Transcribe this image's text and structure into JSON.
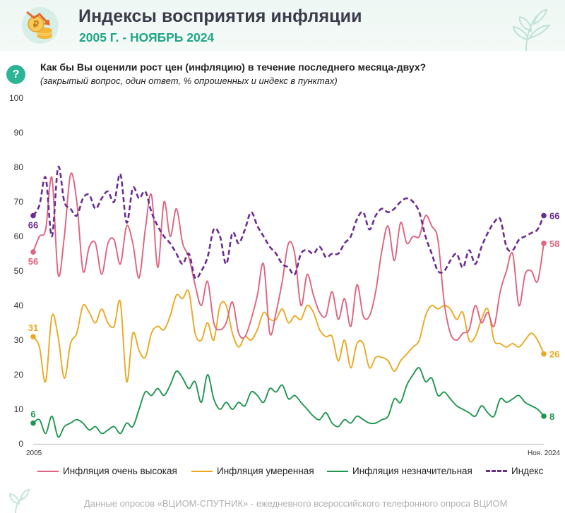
{
  "header": {
    "title": "Индексы восприятия инфляции",
    "subtitle": "2005 Г. - НОЯБРЬ 2024",
    "question_mark": "?",
    "question": "Как бы Вы оценили рост цен (инфляцию) в течение последнего месяца-двух?",
    "question_note": "(закрытый вопрос, один ответ, % опрошенных и индекс в пунктах)"
  },
  "footer": "Данные опросов «ВЦИОМ-СПУТНИК» - ежедневного всероссийского телефонного опроса ВЦИОМ",
  "colors": {
    "very_high": "#e0637f",
    "moderate": "#eba820",
    "insignificant": "#1f9650",
    "index": "#6b2c91",
    "brand": "#1fa585"
  },
  "chart_data": {
    "type": "line",
    "x_label_start": "2005",
    "x_label_end": "Ноя. 2024",
    "ylim": [
      0,
      100
    ],
    "yticks": [
      "0",
      "10",
      "20",
      "30",
      "40",
      "50",
      "60",
      "70",
      "80",
      "90",
      "100"
    ],
    "grid": "none",
    "legend_position": "bottom",
    "series": [
      {
        "key": "very_high",
        "name": "Инфляция очень высокая",
        "color": "#e0637f",
        "dashed": false,
        "start_label": "56",
        "end_label": "58",
        "values": [
          55.5,
          60,
          62,
          77,
          49,
          60,
          78,
          70,
          50,
          57,
          58,
          49,
          58,
          59,
          52,
          63,
          58,
          48,
          62,
          72,
          51,
          70,
          60,
          68,
          58,
          54,
          46,
          40,
          47,
          35,
          33,
          35,
          41,
          32,
          31,
          36,
          43,
          52,
          32,
          38,
          47,
          58,
          55,
          40,
          49,
          43,
          38,
          37,
          44,
          36,
          42,
          34,
          46,
          37,
          37,
          44,
          56,
          63,
          53,
          64,
          58,
          60,
          60,
          66,
          63,
          59,
          41,
          32,
          30,
          32,
          33,
          40,
          35,
          38,
          34,
          44,
          50,
          55,
          40,
          49,
          50,
          47,
          58
        ]
      },
      {
        "key": "moderate",
        "name": "Инфляция умеренная",
        "color": "#eba820",
        "dashed": false,
        "start_label": "31",
        "end_label": "26",
        "values": [
          31,
          28,
          18,
          37,
          31,
          19,
          29,
          32,
          40,
          38,
          35,
          39,
          35,
          34,
          41,
          18,
          32,
          27,
          25,
          32,
          34,
          33,
          37,
          43,
          42,
          44,
          32,
          30,
          35,
          30,
          40,
          40,
          32,
          28,
          31,
          30,
          33,
          38,
          36,
          36,
          39,
          35,
          37,
          36,
          40,
          38,
          33,
          31,
          31,
          24,
          30,
          22,
          29,
          29,
          22,
          25,
          25,
          24,
          21,
          24,
          26,
          28,
          30,
          37,
          40,
          39,
          40,
          39,
          36,
          38,
          30,
          31,
          36,
          39,
          30,
          29,
          28,
          29,
          28,
          30,
          32,
          30,
          26
        ]
      },
      {
        "key": "insignificant",
        "name": "Инфляция незначительная",
        "color": "#1f9650",
        "dashed": false,
        "start_label": "6",
        "end_label": "8",
        "values": [
          6,
          7,
          3,
          8,
          2,
          5,
          6,
          7,
          6,
          4,
          5,
          3,
          4,
          5,
          3,
          6,
          5,
          10,
          15,
          14,
          16,
          14,
          17,
          21,
          19,
          16,
          18,
          12,
          20,
          13,
          10,
          12,
          10,
          12,
          11,
          15,
          14,
          12,
          16,
          15,
          17,
          13,
          14,
          12,
          10,
          8,
          7,
          9,
          6,
          5,
          7,
          6,
          8,
          7,
          6,
          6,
          7,
          8,
          13,
          12,
          17,
          20,
          22,
          18,
          19,
          14,
          15,
          13,
          11,
          10,
          9,
          8,
          11,
          9,
          8,
          13,
          12,
          13,
          14,
          12,
          11,
          10,
          8
        ]
      },
      {
        "key": "index",
        "name": "Индекс",
        "color": "#6b2c91",
        "dashed": true,
        "start_label": "66",
        "end_label": "66",
        "values": [
          66,
          69,
          77,
          60,
          80,
          70,
          68,
          66,
          71,
          72,
          68,
          71,
          73,
          70,
          78,
          64,
          74,
          71,
          73,
          67,
          63,
          60,
          58,
          55,
          52,
          55,
          48,
          50,
          54,
          62,
          60,
          52,
          61,
          58,
          62,
          67,
          63,
          60,
          57,
          55,
          52,
          51,
          49,
          55,
          56,
          55,
          57,
          54,
          55,
          55,
          58,
          60,
          65,
          67,
          62,
          66,
          68,
          67,
          68,
          70,
          71,
          70,
          67,
          60,
          55,
          50,
          50,
          53,
          55,
          51,
          56,
          52,
          57,
          61,
          64,
          65,
          57,
          56,
          59,
          60,
          61,
          62,
          66
        ]
      }
    ]
  }
}
